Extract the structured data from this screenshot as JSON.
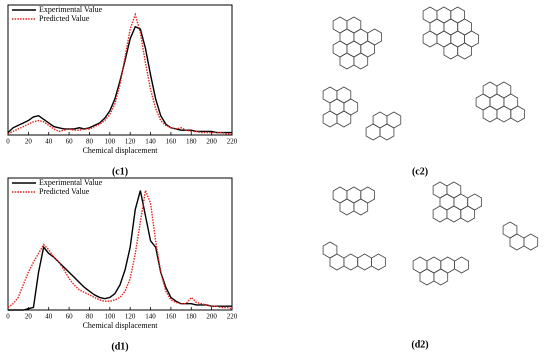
{
  "chart_data": [
    {
      "type": "line",
      "panel_label": "(c1)",
      "xlabel": "Chemical displacement",
      "x": [
        0,
        5,
        10,
        15,
        20,
        25,
        30,
        35,
        40,
        45,
        50,
        55,
        60,
        65,
        70,
        75,
        80,
        85,
        90,
        95,
        100,
        105,
        110,
        115,
        120,
        125,
        130,
        135,
        140,
        145,
        150,
        155,
        160,
        165,
        170,
        175,
        180,
        185,
        190,
        195,
        200,
        205,
        210,
        215,
        220
      ],
      "xlim": [
        0,
        220
      ],
      "xticks": [
        0,
        20,
        40,
        60,
        80,
        100,
        120,
        140,
        160,
        180,
        200,
        220
      ],
      "ylim": [
        0,
        1.08
      ],
      "legend": "upper-left",
      "series": [
        {
          "name": "Experimental Value",
          "color": "#000000",
          "linestyle": "solid",
          "values": [
            0.02,
            0.06,
            0.08,
            0.1,
            0.12,
            0.15,
            0.16,
            0.13,
            0.1,
            0.07,
            0.06,
            0.05,
            0.05,
            0.05,
            0.06,
            0.05,
            0.06,
            0.08,
            0.1,
            0.14,
            0.2,
            0.3,
            0.45,
            0.62,
            0.8,
            0.9,
            0.88,
            0.72,
            0.5,
            0.3,
            0.16,
            0.09,
            0.06,
            0.05,
            0.04,
            0.04,
            0.04,
            0.03,
            0.03,
            0.03,
            0.03,
            0.02,
            0.02,
            0.02,
            0.02
          ]
        },
        {
          "name": "Predicted Value",
          "color": "#e0201b",
          "linestyle": "dotted",
          "values": [
            0.01,
            0.03,
            0.05,
            0.07,
            0.09,
            0.11,
            0.12,
            0.11,
            0.08,
            0.05,
            0.03,
            0.04,
            0.05,
            0.04,
            0.04,
            0.05,
            0.05,
            0.07,
            0.09,
            0.12,
            0.17,
            0.26,
            0.42,
            0.65,
            0.88,
            1.0,
            0.85,
            0.6,
            0.38,
            0.22,
            0.12,
            0.08,
            0.06,
            0.05,
            0.06,
            0.04,
            0.03,
            0.03,
            0.02,
            0.02,
            0.02,
            0.02,
            0.02,
            0.01,
            0.01
          ]
        }
      ]
    },
    {
      "type": "line",
      "panel_label": "(d1)",
      "xlabel": "Chemical displacement",
      "x": [
        0,
        5,
        10,
        15,
        20,
        25,
        30,
        35,
        40,
        45,
        50,
        55,
        60,
        65,
        70,
        75,
        80,
        85,
        90,
        95,
        100,
        105,
        110,
        115,
        120,
        125,
        130,
        135,
        140,
        145,
        150,
        155,
        160,
        165,
        170,
        175,
        180,
        185,
        190,
        195,
        200,
        205,
        210,
        215,
        220
      ],
      "xlim": [
        0,
        220
      ],
      "xticks": [
        0,
        20,
        40,
        60,
        80,
        100,
        120,
        140,
        160,
        180,
        200,
        220
      ],
      "ylim": [
        0,
        1.05
      ],
      "legend": "upper-left",
      "series": [
        {
          "name": "Experimental Value",
          "color": "#000000",
          "linestyle": "solid",
          "values": [
            0,
            0,
            0,
            0,
            0.01,
            0.02,
            0.3,
            0.5,
            0.45,
            0.42,
            0.38,
            0.34,
            0.3,
            0.26,
            0.22,
            0.18,
            0.15,
            0.12,
            0.1,
            0.09,
            0.1,
            0.13,
            0.2,
            0.32,
            0.5,
            0.8,
            0.95,
            0.75,
            0.55,
            0.5,
            0.3,
            0.18,
            0.1,
            0.07,
            0.05,
            0.05,
            0.05,
            0.04,
            0.04,
            0.04,
            0.03,
            0.03,
            0.03,
            0.03,
            0.03
          ]
        },
        {
          "name": "Predicted Value",
          "color": "#e0201b",
          "linestyle": "dotted",
          "values": [
            0.02,
            0.05,
            0.1,
            0.2,
            0.3,
            0.38,
            0.45,
            0.52,
            0.48,
            0.42,
            0.38,
            0.32,
            0.25,
            0.2,
            0.16,
            0.14,
            0.12,
            0.1,
            0.08,
            0.07,
            0.07,
            0.08,
            0.1,
            0.15,
            0.25,
            0.45,
            0.7,
            0.95,
            0.85,
            0.55,
            0.3,
            0.15,
            0.08,
            0.06,
            0.05,
            0.05,
            0.1,
            0.06,
            0.05,
            0.04,
            0.03,
            0.03,
            0.02,
            0.02,
            0.01
          ]
        }
      ]
    }
  ],
  "structures": [
    {
      "label": "(c2)"
    },
    {
      "label": "(d2)"
    }
  ]
}
